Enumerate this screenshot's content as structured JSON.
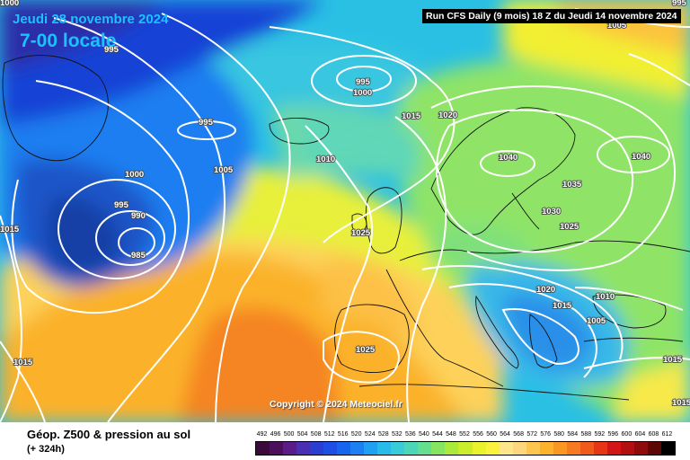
{
  "header": {
    "date": "Jeudi 28 novembre 2024",
    "time": "7-00 locale",
    "run": "Run CFS Daily (9 mois) 18 Z du Jeudi 14 novembre 2024"
  },
  "copyright": "Copyright © 2024 Meteociel.fr",
  "legend": {
    "title": "Géop. Z500 & pression au sol",
    "subtitle": "(+ 324h)",
    "scale_values": [
      "492",
      "496",
      "500",
      "504",
      "508",
      "512",
      "516",
      "520",
      "524",
      "528",
      "532",
      "536",
      "540",
      "544",
      "548",
      "552",
      "556",
      "560",
      "564",
      "568",
      "572",
      "576",
      "580",
      "584",
      "588",
      "592",
      "596",
      "600",
      "604",
      "608",
      "612"
    ],
    "scale_colors": [
      "#3a0a3a",
      "#4b0f5c",
      "#5b1c8a",
      "#4a2fb3",
      "#2a3fcf",
      "#1d4fe6",
      "#1765ef",
      "#1d80f2",
      "#1fa0f0",
      "#26bbe9",
      "#39cbd8",
      "#4bd6b8",
      "#64df8e",
      "#86e55f",
      "#aaea3a",
      "#cbee2c",
      "#e9f22a",
      "#fbf23f",
      "#fde78a",
      "#fdd77d",
      "#fec64f",
      "#fdb22c",
      "#fa9722",
      "#f67a1f",
      "#f05a1a",
      "#e63616",
      "#d31515",
      "#b30f10",
      "#8e0a0b",
      "#5d0606",
      "#000000"
    ]
  },
  "isobars": [
    {
      "label": "995",
      "pos": "top-left"
    },
    {
      "label": "995",
      "pos": "iceland-low"
    },
    {
      "label": "1000",
      "pos": "iceland-low-outer"
    },
    {
      "label": "995",
      "pos": "atlantic-mid"
    },
    {
      "label": "1005",
      "pos": "atlantic"
    },
    {
      "label": "1000",
      "pos": "atlantic-low-outer"
    },
    {
      "label": "995",
      "pos": "atlantic-low"
    },
    {
      "label": "990",
      "pos": "atlantic-low"
    },
    {
      "label": "985",
      "pos": "atlantic-low-center"
    },
    {
      "label": "1010",
      "pos": "north-atlantic"
    },
    {
      "label": "1015",
      "pos": "norwegian-sea"
    },
    {
      "label": "1020",
      "pos": "norway-coast"
    },
    {
      "label": "1040",
      "pos": "scandinavia-high"
    },
    {
      "label": "1040",
      "pos": "russia-high"
    },
    {
      "label": "1035",
      "pos": "baltic"
    },
    {
      "label": "1030",
      "pos": "germany"
    },
    {
      "label": "1025",
      "pos": "central-europe"
    },
    {
      "label": "1025",
      "pos": "british-isles"
    },
    {
      "label": "1020",
      "pos": "alps"
    },
    {
      "label": "1015",
      "pos": "balkans"
    },
    {
      "label": "1010",
      "pos": "black-sea-west"
    },
    {
      "label": "1005",
      "pos": "greece"
    },
    {
      "label": "1015",
      "pos": "west-edge"
    },
    {
      "label": "1015",
      "pos": "southwest-atlantic"
    },
    {
      "label": "1025",
      "pos": "iberia"
    },
    {
      "label": "1015",
      "pos": "turkey"
    },
    {
      "label": "1015",
      "pos": "east-edge"
    },
    {
      "label": "1005",
      "pos": "top-right"
    },
    {
      "label": "1000",
      "pos": "top-left-corner"
    },
    {
      "label": "995",
      "pos": "top-right-corner"
    }
  ]
}
